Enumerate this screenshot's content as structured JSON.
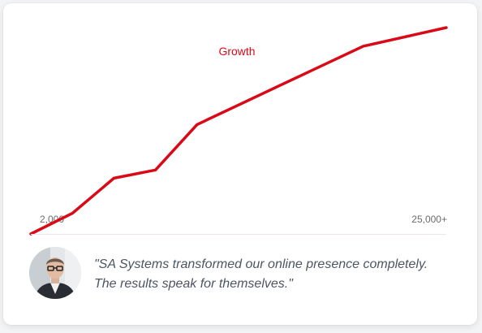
{
  "chart_data": {
    "type": "line",
    "title": "Growth",
    "x_tick_labels": [
      "2,000",
      "25,000+"
    ],
    "series": [
      {
        "color": "#d90a17",
        "points": [
          [
            0,
            0
          ],
          [
            0.1,
            0.1
          ],
          [
            0.2,
            0.27
          ],
          [
            0.3,
            0.31
          ],
          [
            0.4,
            0.53
          ],
          [
            0.6,
            0.72
          ],
          [
            0.8,
            0.91
          ],
          [
            1.0,
            1.0
          ]
        ]
      }
    ],
    "grid": false,
    "legend": "none"
  },
  "testimonial": {
    "quote": "\"SA Systems transformed our online presence completely. The results speak for themselves.\"",
    "avatar_icon": "person-avatar"
  }
}
